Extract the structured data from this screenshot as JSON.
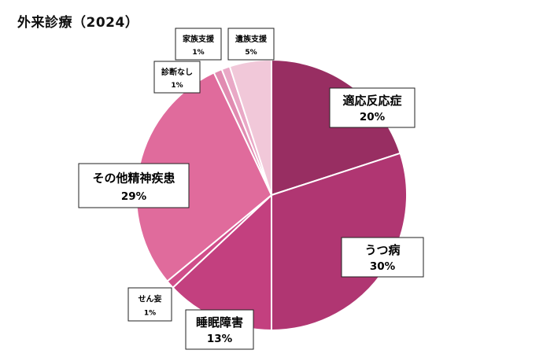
{
  "title": "外来診療（2024）",
  "chart_data": {
    "type": "pie",
    "title": "外来診療（2024）",
    "slices": [
      {
        "label": "適応反応症",
        "value": 20,
        "text": "20%",
        "color": "#982e62"
      },
      {
        "label": "うつ病",
        "value": 30,
        "text": "30%",
        "color": "#b03672"
      },
      {
        "label": "睡眠障害",
        "value": 13,
        "text": "13%",
        "color": "#c3407f"
      },
      {
        "label": "せん妄",
        "value": 1,
        "text": "1%",
        "color": "#d04d8a"
      },
      {
        "label": "その他精神疾患",
        "value": 29,
        "text": "29%",
        "color": "#e06b9c"
      },
      {
        "label": "診断なし",
        "value": 1,
        "text": "1%",
        "color": "#e18bb1"
      },
      {
        "label": "家族支援",
        "value": 1,
        "text": "1%",
        "color": "#e9a8c6"
      },
      {
        "label": "遺族支援",
        "value": 5,
        "text": "5%",
        "color": "#f1c8d9"
      }
    ]
  }
}
